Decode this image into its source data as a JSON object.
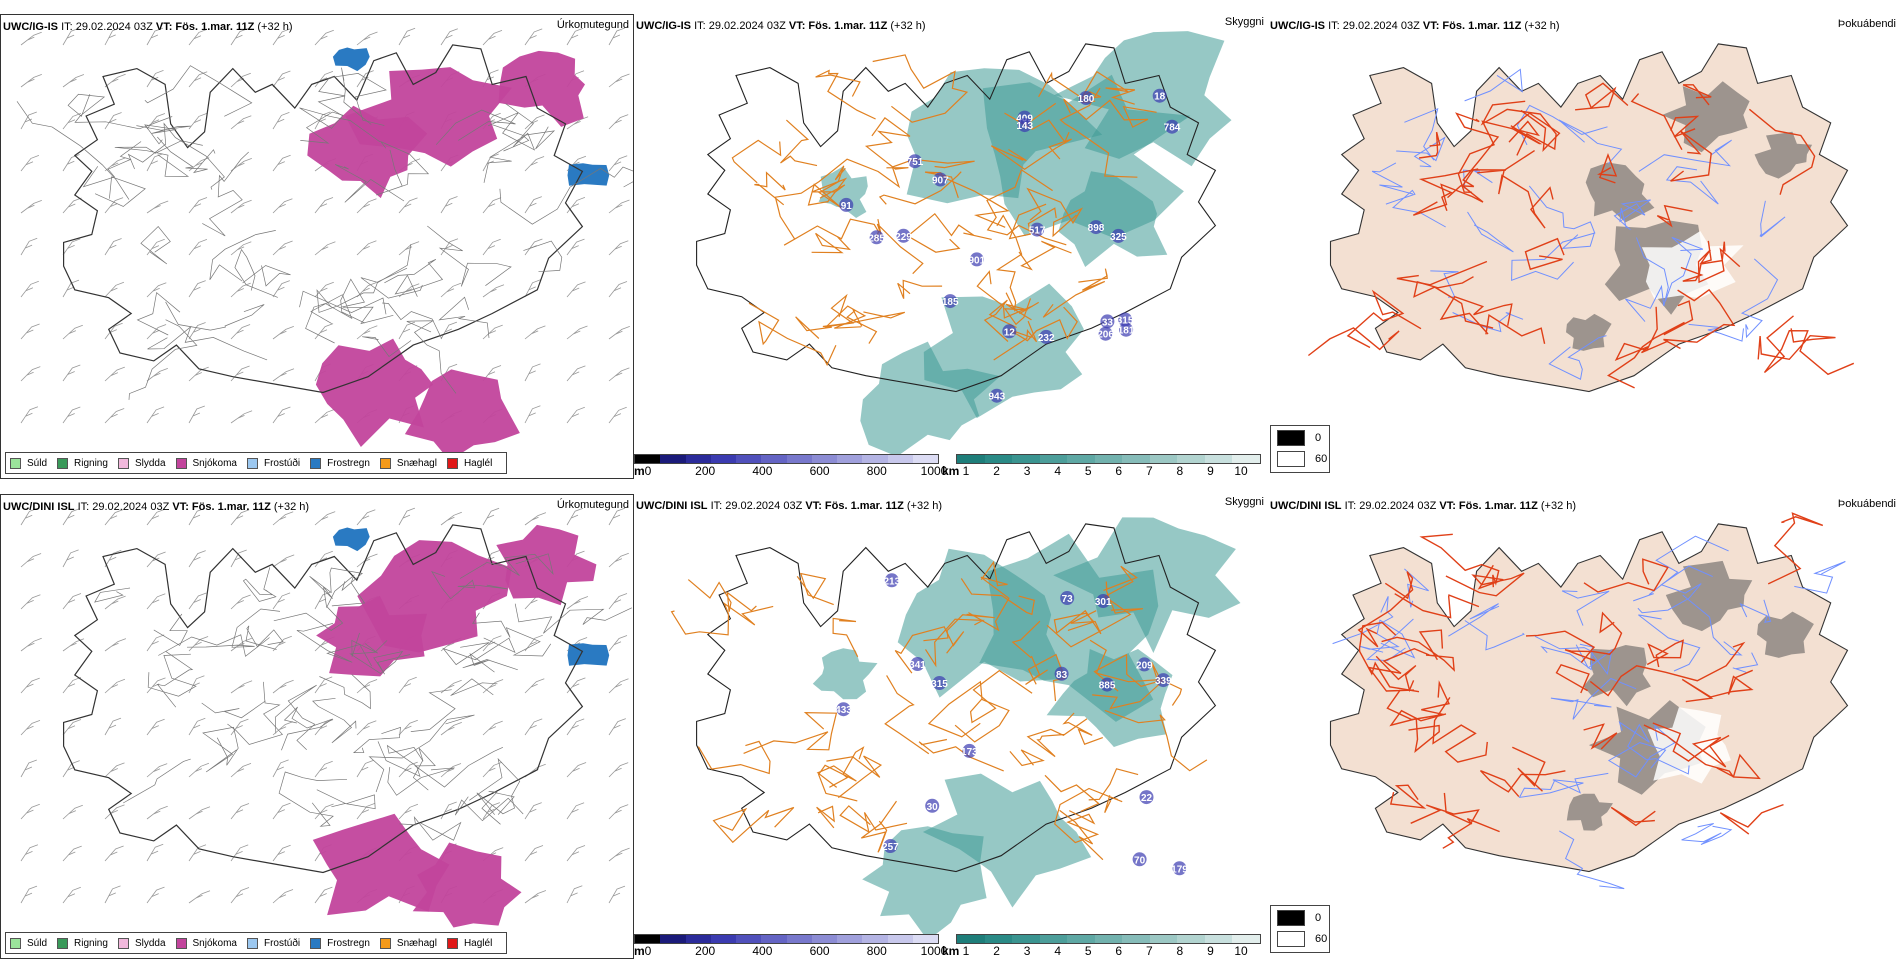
{
  "rows": [
    {
      "id": "top",
      "model": "UWC/IG-IS",
      "it_label": "IT: 29.02.2024 03Z",
      "vt_label": "VT: Fös. 1.mar. 11Z",
      "lead": "(+32 h)",
      "titles": [
        "Úrkomutegund",
        "Skyggni",
        "Þokuábendi"
      ],
      "values": [
        "229",
        "751",
        "180",
        "285",
        "784",
        "907",
        "325",
        "517",
        "409",
        "232",
        "901",
        "206",
        "181",
        "33",
        "185",
        "315",
        "91",
        "143",
        "18",
        "12",
        "898",
        "943"
      ]
    },
    {
      "id": "bottom",
      "model": "UWC/DINI ISL",
      "it_label": "IT: 29.02.2024 03Z",
      "vt_label": "VT: Fös. 1.mar. 11Z",
      "lead": "(+32 h)",
      "titles": [
        "Úrkomutegund",
        "Skyggni",
        "Þokuábendi"
      ],
      "values": [
        "341",
        "433",
        "73",
        "83",
        "301",
        "209",
        "173",
        "30",
        "179",
        "885",
        "22",
        "315",
        "213",
        "339",
        "257",
        "70"
      ]
    }
  ],
  "precip_legend": [
    {
      "label": "Súld",
      "color": "#9be39b"
    },
    {
      "label": "Rigning",
      "color": "#3a9a5a"
    },
    {
      "label": "Slydda",
      "color": "#f2b8dc"
    },
    {
      "label": "Snjókoma",
      "color": "#c2449c"
    },
    {
      "label": "Frostúði",
      "color": "#9cc8f0"
    },
    {
      "label": "Frostregn",
      "color": "#2a7ac2"
    },
    {
      "label": "Snæhagl",
      "color": "#f59a1a"
    },
    {
      "label": "Haglél",
      "color": "#e01818"
    }
  ],
  "ceiling_bar": {
    "unit": "m",
    "ticks": [
      "0",
      "200",
      "400",
      "600",
      "800",
      "1000"
    ],
    "colors": [
      "#000000",
      "#1a1a7a",
      "#2b2b9a",
      "#3b3bb0",
      "#5050bb",
      "#6464c4",
      "#7878cc",
      "#8c8cd4",
      "#a0a0dc",
      "#b4b4e4",
      "#c8c8ec",
      "#dcdcf4"
    ]
  },
  "vis_bar": {
    "unit": "km",
    "ticks": [
      "1",
      "2",
      "3",
      "4",
      "5",
      "6",
      "7",
      "8",
      "9",
      "10"
    ],
    "colors": [
      "#1e7e7a",
      "#2a8a86",
      "#3a9490",
      "#4c9e9a",
      "#5ea8a4",
      "#72b2ae",
      "#86bcb9",
      "#9cc8c4",
      "#b2d4d0",
      "#c8e0de",
      "#e2eeec"
    ]
  },
  "fog_legend": [
    {
      "label": "0",
      "color": "#000000"
    },
    {
      "label": "60",
      "color": "#ffffff"
    }
  ],
  "colors": {
    "snow": "#c2449c",
    "frzrain": "#2a7ac2",
    "vis": "#3f9a95",
    "ceiling": "#3b3bb0",
    "land": "#f3e0d2",
    "roads": "#e08020",
    "rivers": "#7090ff",
    "roadsRed": "#e04018"
  }
}
